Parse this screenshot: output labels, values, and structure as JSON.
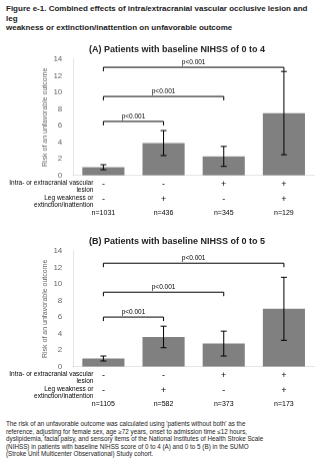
{
  "title": "Figure e-1. Combined effects of intra/extracranial vascular occlusive lesion and leg\nweakness or extinction/inattention on unfavorable outcome",
  "caption": "The risk of an unfavorable outcome was calculated using 'patients without both' as the\nreference, adjusting for female sex, age ≥72 years, onset to admission time ≤12 hours,\ndyslipidemia, facial palsy, and sensory items of the National Institutes of Health Stroke Scale\n(NIHSS) in patients with baseline NIHSS score of 0 to 4 (A) and 0 to 5 (B) in the SUMO\n(Stroke Unit Multicenter Observational) Study cohort.",
  "chart_data": [
    {
      "type": "bar",
      "title": "(A) Patients with baseline NIHSS of 0 to 4",
      "ylabel": "Risk of an unfavorable outcome",
      "categories": [
        [
          "-",
          "-",
          "n=1031"
        ],
        [
          "-",
          "+",
          "n=436"
        ],
        [
          "+",
          "-",
          "n=345"
        ],
        [
          "+",
          "+",
          "n=129"
        ]
      ],
      "row_labels": [
        "Intra- or extracranial vascular lesion",
        "Leg weakness or extinction/inattention"
      ],
      "values": [
        1.0,
        3.9,
        2.3,
        7.5
      ],
      "errors": [
        0.3,
        1.5,
        1.2,
        5.0
      ],
      "color": "#808080",
      "ylim": [
        0,
        14
      ],
      "yticks": [
        0,
        2,
        4,
        6,
        8,
        10,
        12,
        14
      ],
      "grid": false,
      "brackets": [
        {
          "x1": 0,
          "x2": 1,
          "y": 6.5,
          "label": "p<0.001"
        },
        {
          "x1": 0,
          "x2": 2,
          "y": 9.5,
          "label": "p<0.001"
        },
        {
          "x1": 0,
          "x2": 3,
          "y": 13.0,
          "label": "p<0.001"
        }
      ]
    },
    {
      "type": "bar",
      "title": "(B) Patients with baseline NIHSS of 0 to 5",
      "ylabel": "Risk of an unfavorable outcome",
      "categories": [
        [
          "-",
          "-",
          "n=1105"
        ],
        [
          "-",
          "+",
          "n=582"
        ],
        [
          "+",
          "-",
          "n=373"
        ],
        [
          "+",
          "+",
          "n=173"
        ]
      ],
      "row_labels": [
        "Intra- or extracranial vascular lesion",
        "Leg weakness or extinction/inattention"
      ],
      "values": [
        1.0,
        3.6,
        2.8,
        7.0
      ],
      "errors": [
        0.3,
        1.3,
        1.5,
        3.8
      ],
      "color": "#808080",
      "ylim": [
        0,
        14
      ],
      "yticks": [
        0,
        2,
        4,
        6,
        8,
        10,
        12,
        14
      ],
      "grid": false,
      "brackets": [
        {
          "x1": 0,
          "x2": 1,
          "y": 6.0,
          "label": "p<0.001"
        },
        {
          "x1": 0,
          "x2": 2,
          "y": 9.0,
          "label": "p<0.001"
        },
        {
          "x1": 0,
          "x2": 3,
          "y": 12.5,
          "label": "p<0.001"
        }
      ]
    }
  ]
}
